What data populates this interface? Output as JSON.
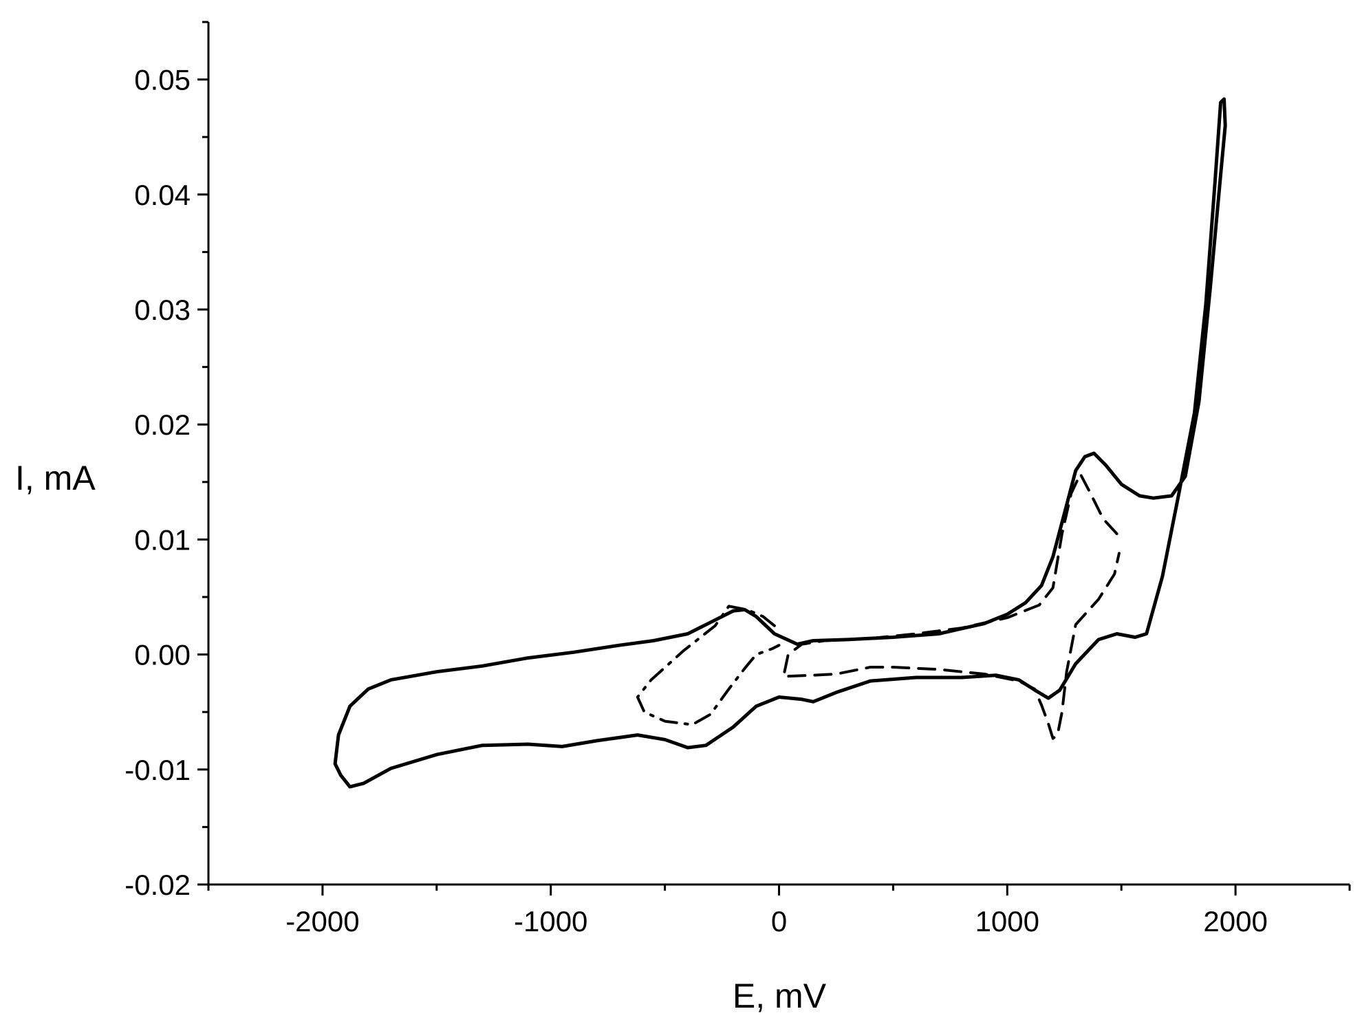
{
  "chart_data": {
    "type": "line",
    "title": "",
    "xlabel": "E, mV",
    "ylabel": "I, mA",
    "xlim": [
      -2500,
      2500
    ],
    "ylim": [
      -0.02,
      0.055
    ],
    "x_ticks_major": [
      -2000,
      -1000,
      0,
      1000,
      2000
    ],
    "x_ticks_minor": [
      -2500,
      -1500,
      -500,
      500,
      1500,
      2500
    ],
    "x_tick_labels": [
      "-2000",
      "-1000",
      "0",
      "1000",
      "2000"
    ],
    "y_ticks_major": [
      -0.02,
      -0.01,
      0.0,
      0.01,
      0.02,
      0.03,
      0.04,
      0.05
    ],
    "y_ticks_minor": [
      -0.015,
      -0.005,
      0.005,
      0.015,
      0.025,
      0.035,
      0.045,
      0.055
    ],
    "y_tick_labels": [
      "-0.02",
      "-0.01",
      "0.00",
      "0.01",
      "0.02",
      "0.03",
      "0.04",
      "0.05"
    ],
    "grid": false,
    "series": [
      {
        "style": "solid",
        "closed": true,
        "points": [
          [
            -1920,
            -0.0105
          ],
          [
            -1880,
            -0.0115
          ],
          [
            -1820,
            -0.0112
          ],
          [
            -1700,
            -0.0099
          ],
          [
            -1500,
            -0.0087
          ],
          [
            -1300,
            -0.0079
          ],
          [
            -1100,
            -0.0078
          ],
          [
            -950,
            -0.008
          ],
          [
            -800,
            -0.0075
          ],
          [
            -620,
            -0.007
          ],
          [
            -500,
            -0.0074
          ],
          [
            -400,
            -0.0081
          ],
          [
            -320,
            -0.0079
          ],
          [
            -200,
            -0.0063
          ],
          [
            -100,
            -0.0045
          ],
          [
            0,
            -0.0037
          ],
          [
            100,
            -0.0039
          ],
          [
            150,
            -0.0041
          ],
          [
            250,
            -0.0033
          ],
          [
            400,
            -0.0023
          ],
          [
            600,
            -0.002
          ],
          [
            800,
            -0.002
          ],
          [
            950,
            -0.0018
          ],
          [
            1050,
            -0.0022
          ],
          [
            1130,
            -0.0032
          ],
          [
            1180,
            -0.0038
          ],
          [
            1230,
            -0.0031
          ],
          [
            1300,
            -0.0008
          ],
          [
            1400,
            0.0013
          ],
          [
            1480,
            0.0018
          ],
          [
            1560,
            0.0015
          ],
          [
            1610,
            0.0018
          ],
          [
            1680,
            0.0068
          ],
          [
            1750,
            0.0138
          ],
          [
            1820,
            0.021
          ],
          [
            1870,
            0.0305
          ],
          [
            1910,
            0.041
          ],
          [
            1935,
            0.048
          ],
          [
            1950,
            0.0483
          ],
          [
            1955,
            0.046
          ],
          [
            1935,
            0.0417
          ],
          [
            1890,
            0.032
          ],
          [
            1840,
            0.022
          ],
          [
            1780,
            0.0155
          ],
          [
            1720,
            0.0138
          ],
          [
            1640,
            0.0136
          ],
          [
            1580,
            0.0138
          ],
          [
            1500,
            0.0148
          ],
          [
            1430,
            0.0165
          ],
          [
            1380,
            0.0175
          ],
          [
            1340,
            0.0172
          ],
          [
            1300,
            0.016
          ],
          [
            1260,
            0.013
          ],
          [
            1200,
            0.0085
          ],
          [
            1150,
            0.006
          ],
          [
            1080,
            0.0045
          ],
          [
            1000,
            0.0035
          ],
          [
            900,
            0.0027
          ],
          [
            700,
            0.0018
          ],
          [
            500,
            0.0015
          ],
          [
            300,
            0.0013
          ],
          [
            150,
            0.0012
          ],
          [
            80,
            0.0009
          ],
          [
            -20,
            0.0018
          ],
          [
            -100,
            0.0033
          ],
          [
            -150,
            0.0039
          ],
          [
            -200,
            0.0038
          ],
          [
            -300,
            0.0028
          ],
          [
            -400,
            0.0018
          ],
          [
            -550,
            0.0012
          ],
          [
            -700,
            0.0008
          ],
          [
            -900,
            0.0002
          ],
          [
            -1100,
            -0.0003
          ],
          [
            -1300,
            -0.001
          ],
          [
            -1500,
            -0.0015
          ],
          [
            -1700,
            -0.0022
          ],
          [
            -1800,
            -0.003
          ],
          [
            -1880,
            -0.0045
          ],
          [
            -1930,
            -0.007
          ],
          [
            -1945,
            -0.0095
          ],
          [
            -1920,
            -0.0105
          ]
        ]
      },
      {
        "style": "dashed",
        "closed": false,
        "points": [
          [
            1480,
            0.0105
          ],
          [
            1420,
            0.0118
          ],
          [
            1360,
            0.0142
          ],
          [
            1320,
            0.0157
          ],
          [
            1280,
            0.014
          ],
          [
            1240,
            0.0105
          ],
          [
            1200,
            0.0058
          ],
          [
            1140,
            0.0043
          ],
          [
            1000,
            0.0032
          ],
          [
            800,
            0.0023
          ],
          [
            600,
            0.0018
          ],
          [
            400,
            0.0014
          ],
          [
            200,
            0.0012
          ],
          [
            100,
            0.0009
          ],
          [
            40,
            0.0
          ],
          [
            20,
            -0.0019
          ],
          [
            150,
            -0.0018
          ],
          [
            250,
            -0.0017
          ],
          [
            400,
            -0.0011
          ],
          [
            500,
            -0.0011
          ],
          [
            700,
            -0.0013
          ],
          [
            900,
            -0.0017
          ],
          [
            1050,
            -0.0023
          ],
          [
            1120,
            -0.003
          ],
          [
            1150,
            -0.0044
          ],
          [
            1180,
            -0.006
          ],
          [
            1200,
            -0.0073
          ],
          [
            1220,
            -0.007
          ],
          [
            1240,
            -0.005
          ],
          [
            1260,
            -0.0015
          ],
          [
            1300,
            0.0026
          ],
          [
            1400,
            0.0048
          ],
          [
            1470,
            0.007
          ],
          [
            1490,
            0.0088
          ]
        ]
      },
      {
        "style": "dashdot",
        "closed": false,
        "points": [
          [
            -20,
            0.0025
          ],
          [
            -70,
            0.0033
          ],
          [
            -140,
            0.0039
          ],
          [
            -220,
            0.0042
          ],
          [
            -280,
            0.0025
          ],
          [
            -420,
            0.0003
          ],
          [
            -560,
            -0.0022
          ],
          [
            -620,
            -0.0037
          ],
          [
            -590,
            -0.005
          ],
          [
            -500,
            -0.0058
          ],
          [
            -380,
            -0.0061
          ],
          [
            -300,
            -0.0052
          ],
          [
            -220,
            -0.003
          ],
          [
            -150,
            -0.0012
          ],
          [
            -100,
            0.0
          ],
          [
            -30,
            0.0005
          ],
          [
            0,
            0.0008
          ]
        ]
      }
    ]
  }
}
